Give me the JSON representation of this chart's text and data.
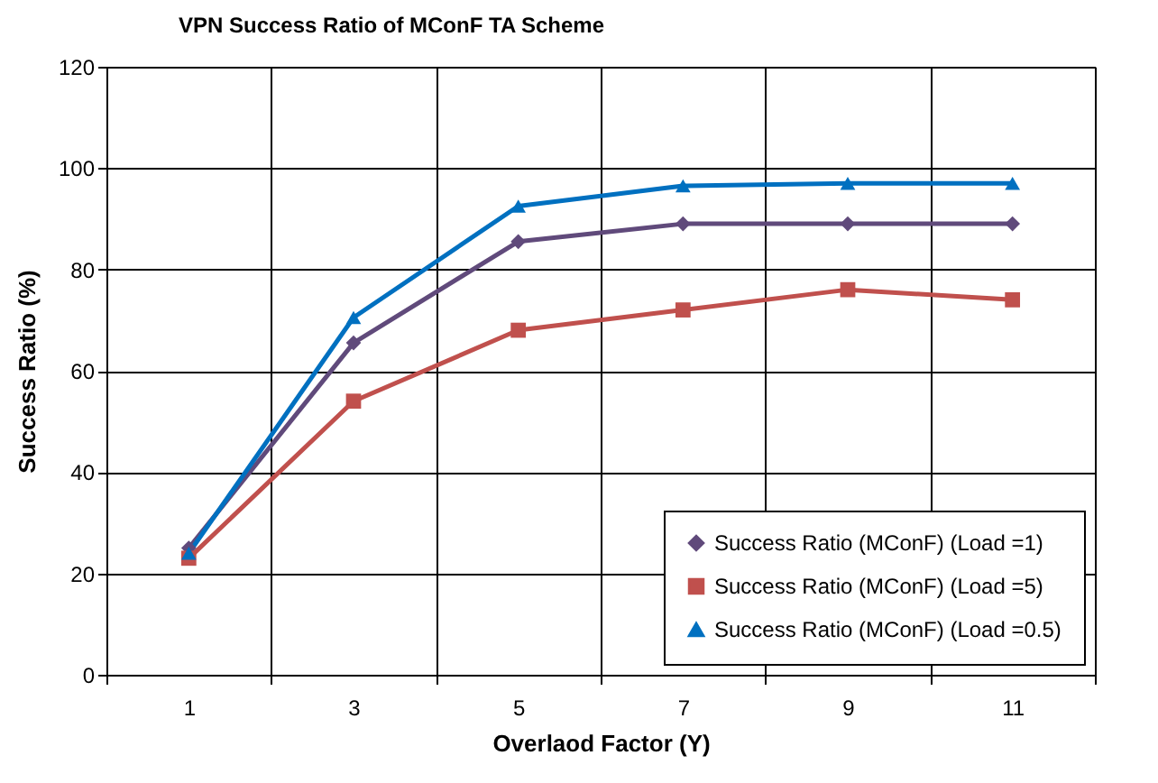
{
  "chart_data": {
    "type": "line",
    "title": "VPN Success Ratio of MConF TA Scheme",
    "xlabel": "Overlaod Factor  (Y)",
    "ylabel": "Success Ratio (%)",
    "categories": [
      "1",
      "3",
      "5",
      "7",
      "9",
      "11"
    ],
    "series": [
      {
        "name": "Success Ratio (MConF) (Load =1)",
        "color": "#604a7b",
        "marker": "diamond",
        "values": [
          25,
          65.5,
          85.5,
          89,
          89,
          89
        ]
      },
      {
        "name": "Success Ratio (MConF) (Load =5)",
        "color": "#c0504d",
        "marker": "square",
        "values": [
          23,
          54,
          68,
          72,
          76,
          74
        ]
      },
      {
        "name": "Success Ratio (MConF) (Load =0.5)",
        "color": "#0070c0",
        "marker": "triangle",
        "values": [
          24,
          70.5,
          92.5,
          96.5,
          97,
          97
        ]
      }
    ],
    "ylim": [
      0,
      120
    ],
    "yticks": [
      0,
      20,
      40,
      60,
      80,
      100,
      120
    ],
    "grid": true,
    "legend": "bottom right",
    "line_style": "solid"
  }
}
